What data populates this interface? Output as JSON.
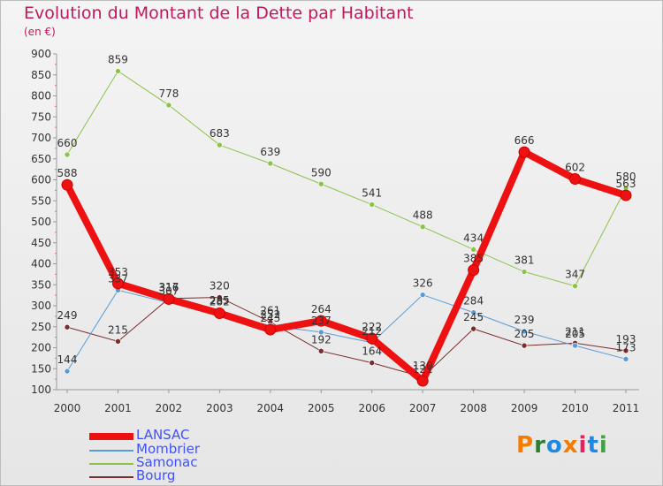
{
  "header": {
    "title": "Evolution du Montant de la Dette par Habitant",
    "subtitle": "(en €)"
  },
  "logo": {
    "text": "Proxiti",
    "colors": [
      "#f57c00",
      "#2e7d32",
      "#1e88e5",
      "#f57c00",
      "#e91e63",
      "#1e88e5",
      "#43a047"
    ]
  },
  "chart_data": {
    "type": "line",
    "title": "Evolution du Montant de la Dette par Habitant",
    "subtitle": "(en €)",
    "categories": [
      "2000",
      "2001",
      "2002",
      "2003",
      "2004",
      "2005",
      "2006",
      "2007",
      "2008",
      "2009",
      "2010",
      "2011"
    ],
    "ylim": [
      100,
      900
    ],
    "yticks": [
      100,
      150,
      200,
      250,
      300,
      350,
      400,
      450,
      500,
      550,
      600,
      650,
      700,
      750,
      800,
      850,
      900
    ],
    "grid": false,
    "legend_position": "bottom-left",
    "series": [
      {
        "name": "LANSAC",
        "color": "#ee1111",
        "width": 8,
        "point_radius": 6,
        "values": [
          588,
          353,
          316,
          282,
          243,
          264,
          222,
          121,
          385,
          666,
          602,
          563
        ],
        "labels": [
          "588",
          "353",
          "316",
          "282",
          "243",
          "264",
          "222",
          "121",
          "385",
          "666",
          "602",
          "563"
        ]
      },
      {
        "name": "Mombrier",
        "color": "#5b9bd5",
        "width": 1,
        "point_radius": 3,
        "values": [
          144,
          337,
          307,
          285,
          252,
          237,
          212,
          326,
          284,
          239,
          205,
          173
        ],
        "labels": [
          "144",
          "337",
          "307",
          "285",
          "252",
          "237",
          "212",
          "326",
          "284",
          "239",
          "205",
          "173"
        ]
      },
      {
        "name": "Samonac",
        "color": "#8bc34a",
        "width": 1,
        "point_radius": 3,
        "values": [
          660,
          859,
          778,
          683,
          639,
          590,
          541,
          488,
          434,
          381,
          347,
          580
        ],
        "labels": [
          "660",
          "859",
          "778",
          "683",
          "639",
          "590",
          "541",
          "488",
          "434",
          "381",
          "347",
          "580"
        ]
      },
      {
        "name": "Bourg",
        "color": "#7b2c2c",
        "width": 1,
        "point_radius": 3,
        "values": [
          249,
          215,
          317,
          320,
          261,
          192,
          164,
          130,
          245,
          205,
          211,
          193
        ],
        "labels": [
          "249",
          "215",
          "317",
          "320",
          "261",
          "192",
          "164",
          "130",
          "245",
          "205",
          "211",
          "193"
        ]
      }
    ]
  }
}
